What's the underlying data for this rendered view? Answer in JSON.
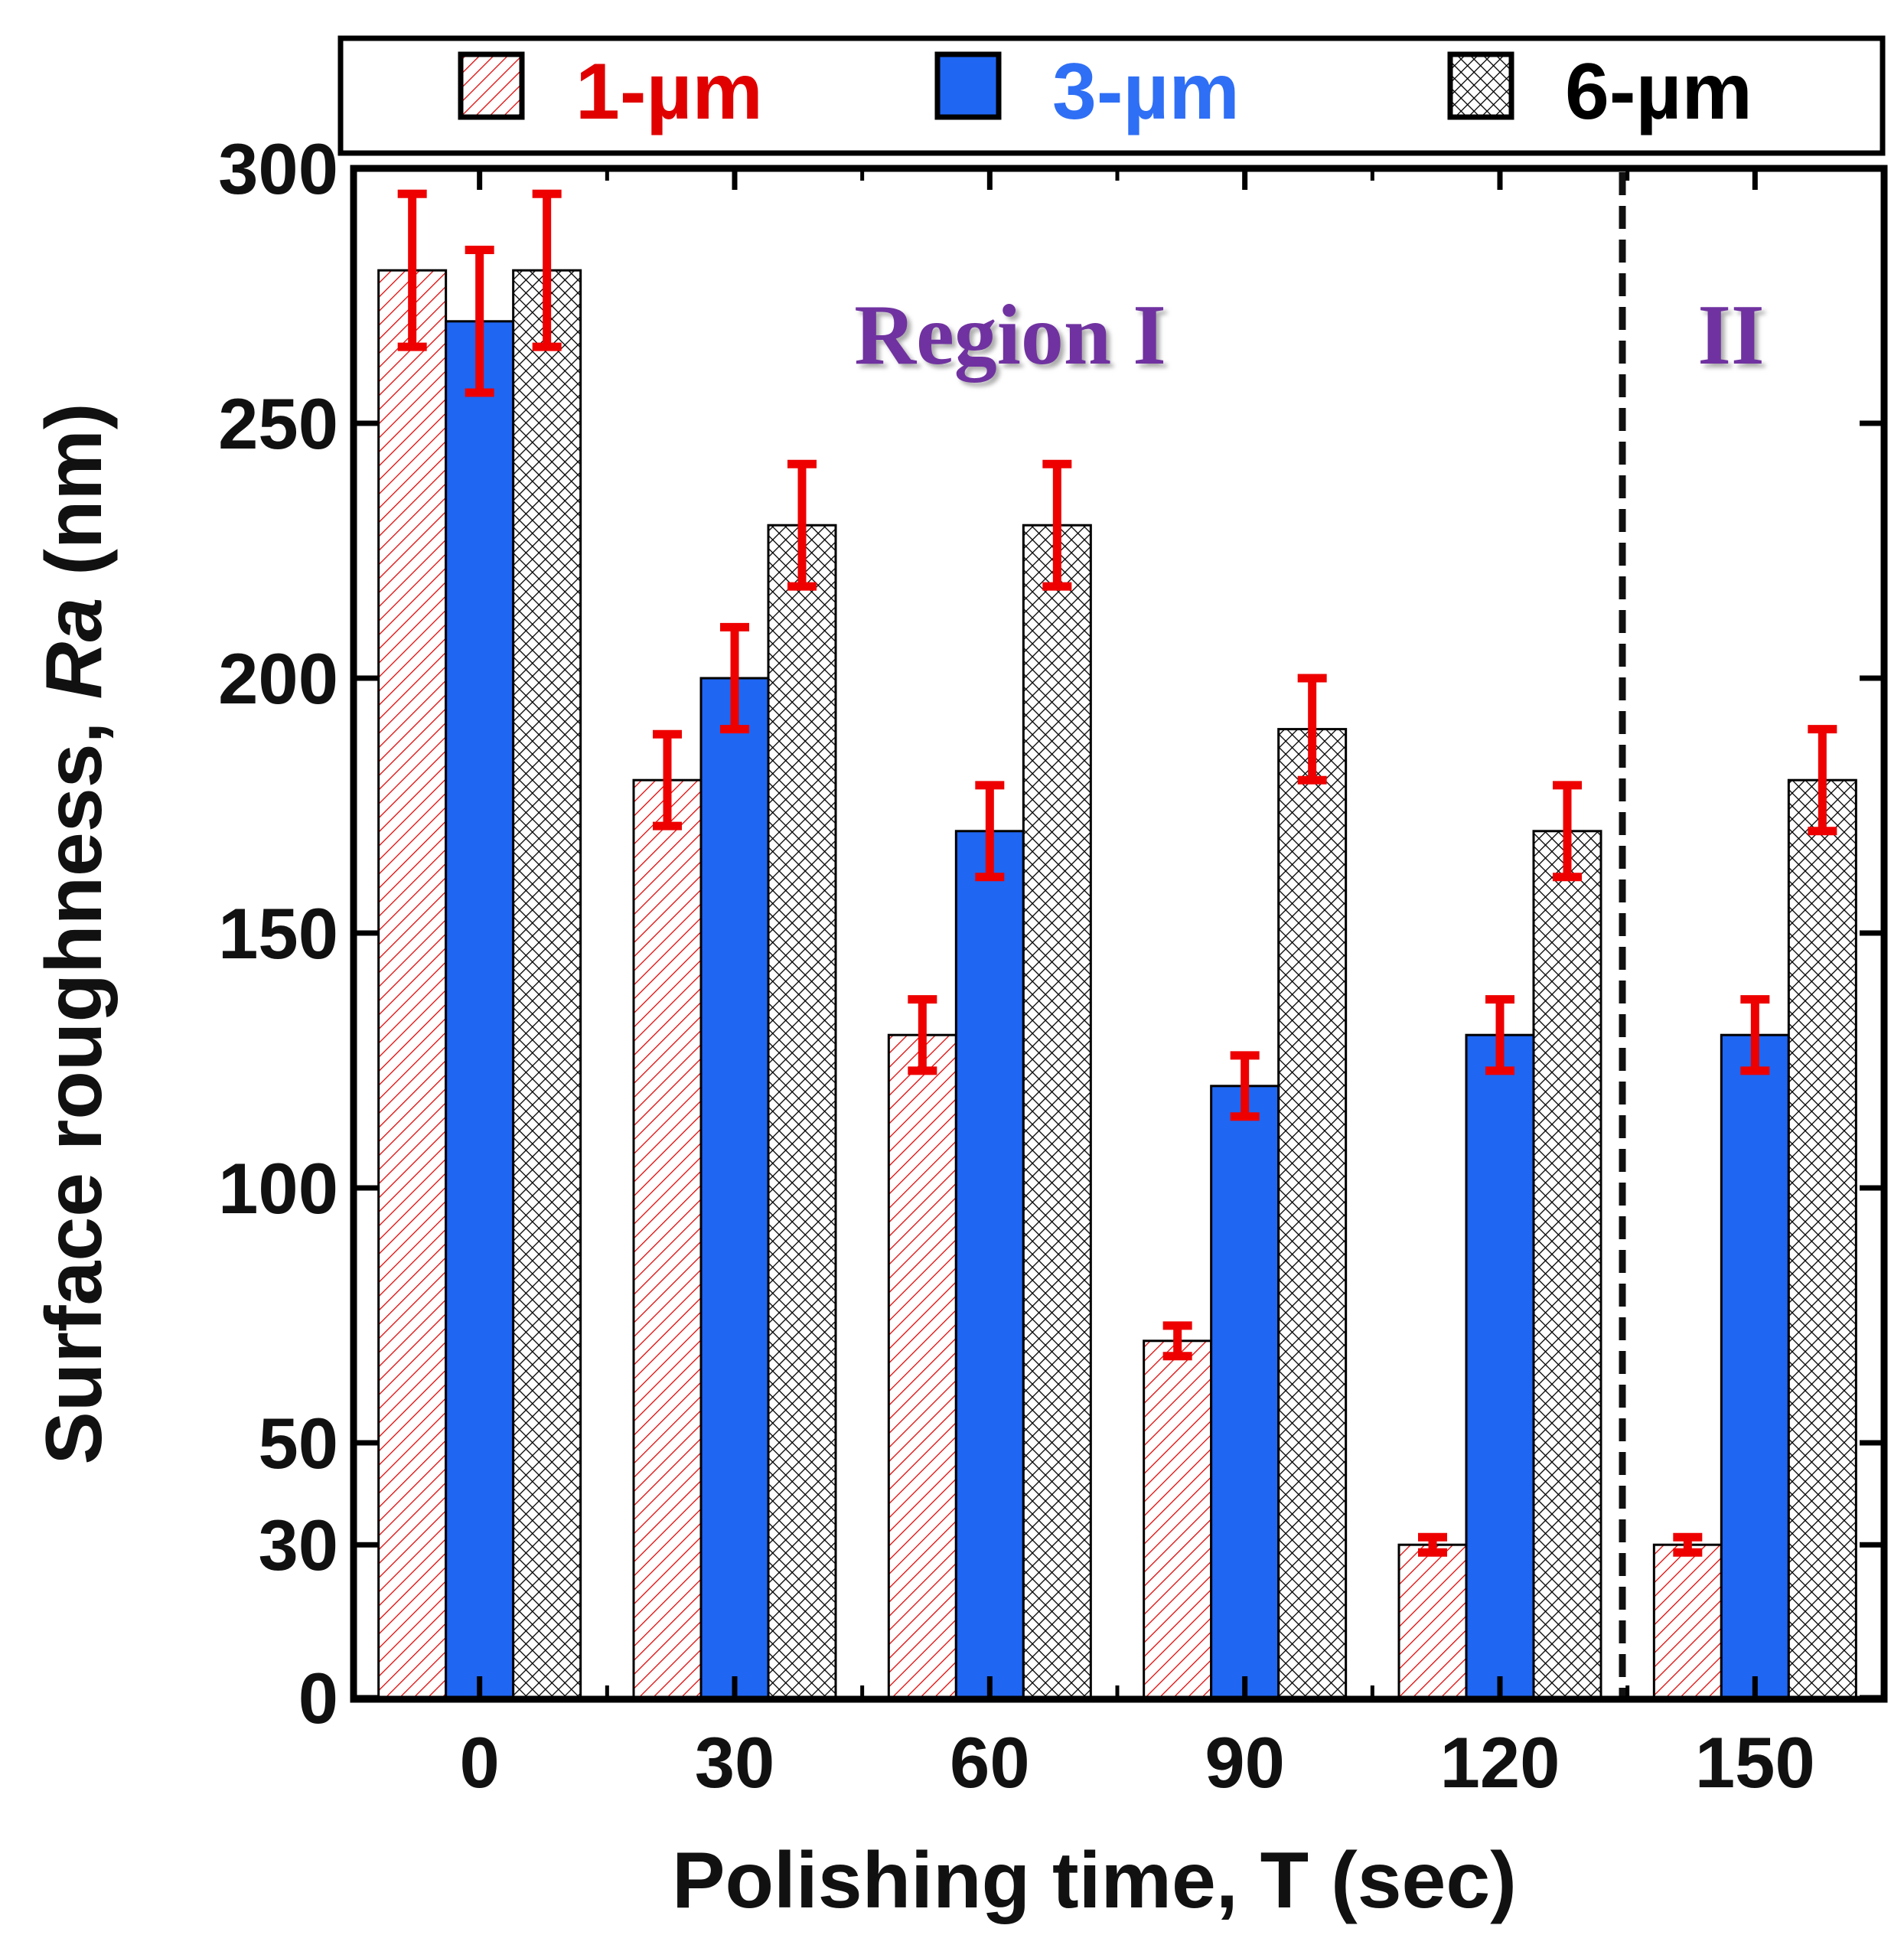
{
  "chart_data": {
    "type": "bar",
    "title": "",
    "xlabel": "Polishing time, T (sec)",
    "ylabel_prefix": "Surface roughness, ",
    "ylabel_italic": "Ra",
    "ylabel_suffix": " (nm)",
    "categories": [
      "0",
      "30",
      "60",
      "90",
      "120",
      "150"
    ],
    "ylim": [
      0,
      300
    ],
    "yticks": [
      0,
      30,
      50,
      100,
      150,
      200,
      250,
      300
    ],
    "legend_position": "top",
    "series": [
      {
        "name": "1-µm",
        "pattern": "diagonal-hatch",
        "color": "#e00000",
        "label_color": "#e00000",
        "values": [
          280,
          180,
          130,
          70,
          30,
          30
        ],
        "errors": [
          15,
          9,
          7,
          3,
          1.5,
          1.5
        ]
      },
      {
        "name": "3-µm",
        "pattern": "solid",
        "color": "#1f66f2",
        "label_color": "#2f6ff5",
        "values": [
          270,
          200,
          170,
          120,
          130,
          130
        ],
        "errors": [
          14,
          10,
          9,
          6,
          7,
          7
        ]
      },
      {
        "name": "6-µm",
        "pattern": "crosshatch",
        "color": "#000000",
        "label_color": "#000000",
        "values": [
          280,
          230,
          230,
          190,
          170,
          180
        ],
        "errors": [
          15,
          12,
          12,
          10,
          9,
          10
        ]
      }
    ],
    "error_bar_color": "#ee0000",
    "region_divider_after_category": "120",
    "annotations": [
      {
        "text": "Region I",
        "color": "#7030a0"
      },
      {
        "text": "II",
        "color": "#7030a0"
      }
    ]
  }
}
